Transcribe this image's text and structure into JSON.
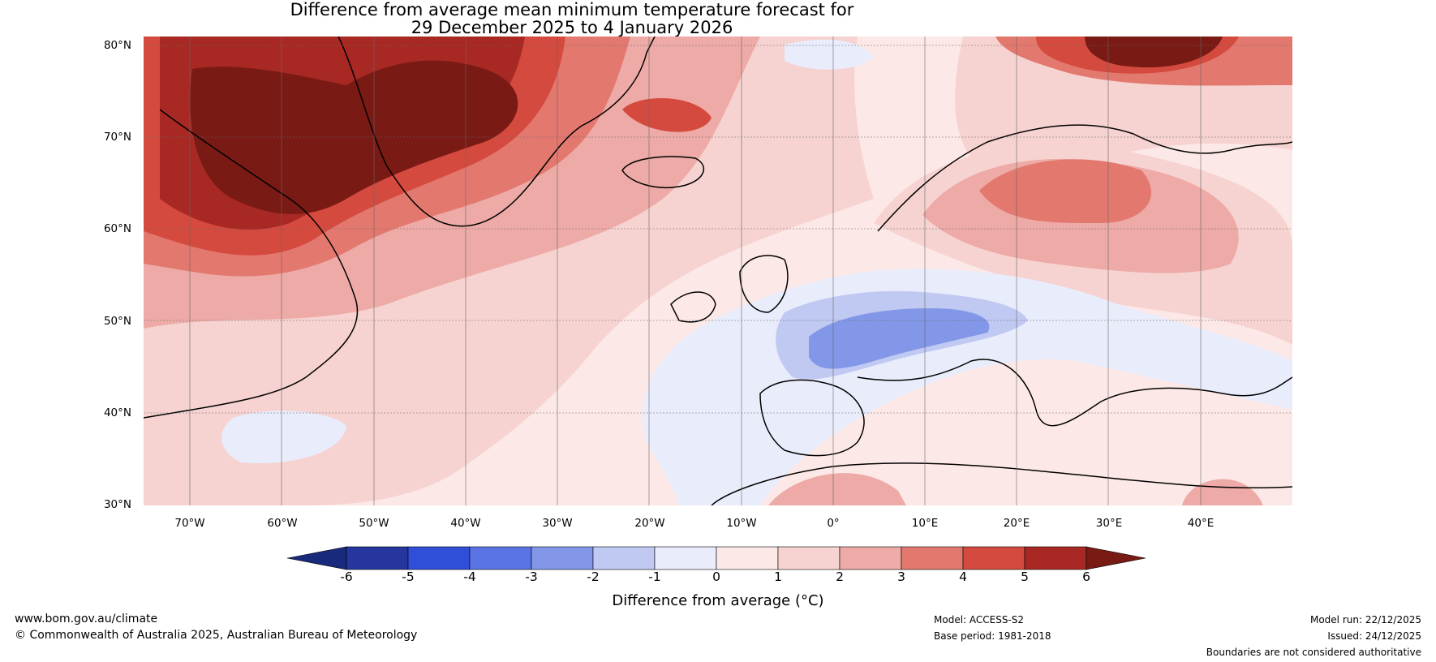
{
  "title": {
    "line1": "Difference from average mean minimum temperature forecast for",
    "line2": "29 December 2025 to 4 January 2026"
  },
  "map": {
    "lat_labels": [
      "80°N",
      "70°N",
      "60°N",
      "50°N",
      "40°N",
      "30°N"
    ],
    "lon_labels": [
      "70°W",
      "60°W",
      "50°W",
      "40°W",
      "30°W",
      "20°W",
      "10°W",
      "0°",
      "10°E",
      "20°E",
      "30°E",
      "40°E"
    ]
  },
  "colorbar": {
    "ticks": [
      "-6",
      "-5",
      "-4",
      "-3",
      "-2",
      "-1",
      "0",
      "1",
      "2",
      "3",
      "4",
      "5",
      "6"
    ],
    "colors": [
      "#25379f",
      "#2f4fd8",
      "#5b74e3",
      "#8397e8",
      "#c0c9f2",
      "#e9ecfb",
      "#fce9e7",
      "#f6d3d0",
      "#edaaa6",
      "#e3786f",
      "#d54a3e",
      "#a82823"
    ],
    "low_extend_color": "#172a7c",
    "high_extend_color": "#7a1a15",
    "label": "Difference from average (°C)"
  },
  "footer": {
    "website": "www.bom.gov.au/climate",
    "copyright": "© Commonwealth of Australia 2025, Australian Bureau of Meteorology",
    "model": "Model: ACCESS-S2",
    "base_period": "Base period: 1981-2018",
    "model_run": "Model run: 22/12/2025",
    "issued": "Issued: 24/12/2025",
    "disclaimer": "Boundaries are not considered authoritative"
  }
}
